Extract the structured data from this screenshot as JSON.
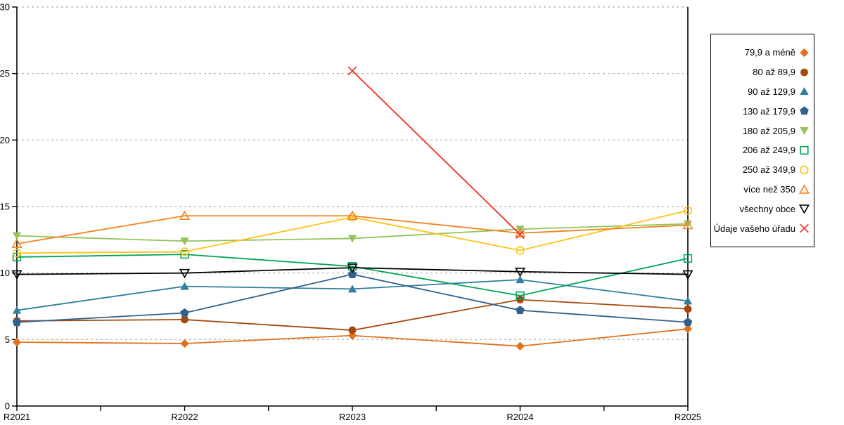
{
  "page": {
    "background": "#ffffff",
    "plot_border_color": "#000000",
    "gridline_color": "#adadad"
  },
  "chart_data": {
    "type": "line",
    "title": "",
    "xlabel": "",
    "ylabel": "",
    "categories": [
      "R2021",
      "R2022",
      "R2023",
      "R2024",
      "R2025"
    ],
    "ylim": [
      0,
      30
    ],
    "yticks": [
      0,
      5,
      10,
      15,
      20,
      25,
      30
    ],
    "grid": "horizontal dashed gridlines at each y tick",
    "legend_position": "right",
    "series": [
      {
        "name": "79,9 a méně",
        "color": "#e2711c",
        "marker": "diamond-filled",
        "values": [
          4.8,
          4.7,
          5.3,
          4.5,
          5.8
        ]
      },
      {
        "name": "80 až 89,9",
        "color": "#a6480d",
        "marker": "circle-filled",
        "values": [
          6.4,
          6.5,
          5.7,
          8.0,
          7.3
        ]
      },
      {
        "name": "90 až 129,9",
        "color": "#2f7f9b",
        "marker": "triangle-up-filled",
        "values": [
          7.2,
          9.0,
          8.8,
          9.5,
          7.9
        ]
      },
      {
        "name": "130 až 179,9",
        "color": "#33618d",
        "marker": "pentagon-filled",
        "values": [
          6.3,
          7.0,
          9.9,
          7.2,
          6.3
        ]
      },
      {
        "name": "180 až 205,9",
        "color": "#92c45a",
        "marker": "triangle-down-filled",
        "values": [
          12.8,
          12.4,
          12.6,
          13.3,
          13.7
        ]
      },
      {
        "name": "206 až 249,9",
        "color": "#00a45a",
        "marker": "square-open",
        "values": [
          11.2,
          11.4,
          10.5,
          8.3,
          11.1
        ]
      },
      {
        "name": "250 až 349,9",
        "color": "#ffc114",
        "marker": "circle-open",
        "values": [
          11.5,
          11.6,
          14.2,
          11.7,
          14.7
        ]
      },
      {
        "name": "více než 350",
        "color": "#f58220",
        "marker": "triangle-up-open",
        "values": [
          12.2,
          14.3,
          14.3,
          13.0,
          13.6
        ]
      },
      {
        "name": "všechny obce",
        "color": "#000000",
        "marker": "triangle-down-open",
        "values": [
          9.9,
          10.0,
          10.4,
          10.1,
          9.9
        ]
      },
      {
        "name": "Údaje vašeho úřadu",
        "color": "#ec2d24",
        "marker": "x",
        "values": [
          null,
          null,
          25.2,
          12.9,
          null
        ]
      }
    ]
  }
}
